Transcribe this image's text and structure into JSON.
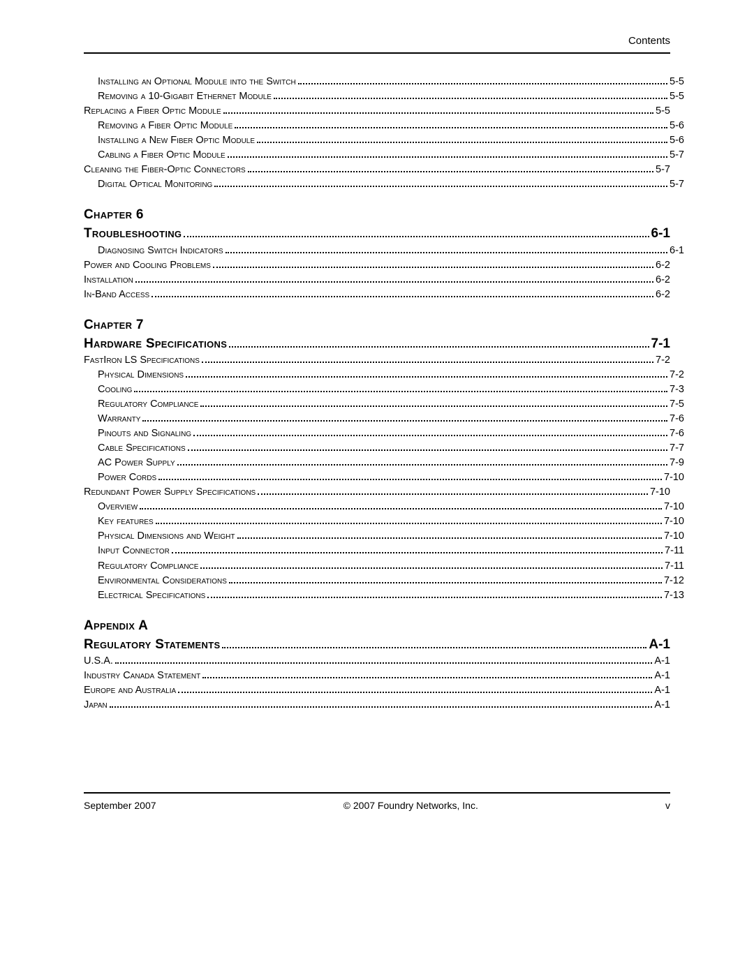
{
  "header": {
    "right": "Contents"
  },
  "footer": {
    "left": "September 2007",
    "center": "© 2007 Foundry Networks, Inc.",
    "right": "v"
  },
  "sections": [
    {
      "heading": null,
      "entries": [
        {
          "level": 3,
          "title": "Installing an Optional Module into the Switch",
          "page": "5-5"
        },
        {
          "level": 3,
          "title": "Removing a 10-Gigabit Ethernet Module",
          "page": "5-5"
        },
        {
          "level": 2,
          "title": "Replacing a Fiber Optic Module",
          "page": "5-5"
        },
        {
          "level": 3,
          "title": "Removing a Fiber Optic Module",
          "page": "5-6"
        },
        {
          "level": 3,
          "title": "Installing a New Fiber Optic Module",
          "page": "5-6"
        },
        {
          "level": 3,
          "title": "Cabling a Fiber Optic Module",
          "page": "5-7"
        },
        {
          "level": 2,
          "title": "Cleaning the Fiber-Optic Connectors",
          "page": "5-7"
        },
        {
          "level": 3,
          "title": "Digital Optical Monitoring",
          "page": "5-7"
        }
      ]
    },
    {
      "heading": "Chapter 6",
      "entries": [
        {
          "level": 1,
          "title": "Troubleshooting",
          "page": "6-1"
        },
        {
          "level": 3,
          "title": "Diagnosing Switch Indicators",
          "page": "6-1"
        },
        {
          "level": 2,
          "title": "Power and Cooling Problems",
          "page": "6-2"
        },
        {
          "level": 2,
          "title": "Installation",
          "page": "6-2"
        },
        {
          "level": 2,
          "title": "In-Band Access",
          "page": "6-2"
        }
      ]
    },
    {
      "heading": "Chapter 7",
      "entries": [
        {
          "level": 1,
          "title": "Hardware Specifications",
          "page": "7-1"
        },
        {
          "level": 2,
          "title": "FastIron LS Specifications",
          "page": "7-2"
        },
        {
          "level": 3,
          "title": "Physical Dimensions",
          "page": "7-2"
        },
        {
          "level": 3,
          "title": "Cooling",
          "page": "7-3"
        },
        {
          "level": 3,
          "title": "Regulatory Compliance",
          "page": "7-5"
        },
        {
          "level": 3,
          "title": "Warranty",
          "page": "7-6"
        },
        {
          "level": 3,
          "title": "Pinouts and Signaling",
          "page": "7-6"
        },
        {
          "level": 3,
          "title": "Cable Specifications",
          "page": "7-7"
        },
        {
          "level": 3,
          "title": "AC Power Supply",
          "page": "7-9"
        },
        {
          "level": 3,
          "title": "Power Cords",
          "page": "7-10"
        },
        {
          "level": 2,
          "title": "Redundant Power Supply Specifications",
          "page": "7-10"
        },
        {
          "level": 3,
          "title": "Overview",
          "page": "7-10"
        },
        {
          "level": 3,
          "title": "Key features",
          "page": "7-10"
        },
        {
          "level": 3,
          "title": "Physical Dimensions and Weight",
          "page": "7-10"
        },
        {
          "level": 3,
          "title": "Input Connector",
          "page": "7-11"
        },
        {
          "level": 3,
          "title": "Regulatory Compliance",
          "page": "7-11"
        },
        {
          "level": 3,
          "title": "Environmental Considerations",
          "page": "7-12"
        },
        {
          "level": 3,
          "title": "Electrical Specifications",
          "page": "7-13"
        }
      ]
    },
    {
      "heading": "Appendix A",
      "entries": [
        {
          "level": 1,
          "title": "Regulatory Statements",
          "page": "A-1"
        },
        {
          "level": 2,
          "title": "U.S.A.",
          "page": " A-1"
        },
        {
          "level": 2,
          "title": "Industry Canada Statement",
          "page": " A-1"
        },
        {
          "level": 2,
          "title": "Europe and Australia",
          "page": " A-1"
        },
        {
          "level": 2,
          "title": "Japan",
          "page": " A-1"
        }
      ]
    }
  ]
}
